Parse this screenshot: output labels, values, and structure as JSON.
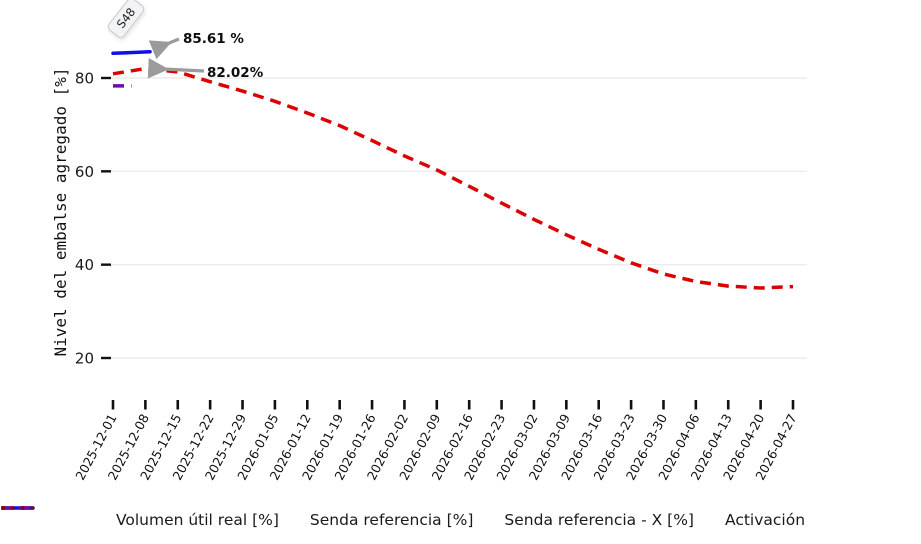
{
  "tooltip": {
    "label": "S48"
  },
  "annotations": [
    {
      "text": "85.61 %",
      "refers_to": "Volumen útil real [%]"
    },
    {
      "text": "82.02%",
      "refers_to": "Senda referencia [%]"
    }
  ],
  "chart_data": {
    "type": "line",
    "title": "",
    "xlabel": "",
    "ylabel": "Nivel del embalse agregado [%]",
    "grid": true,
    "legend_position": "bottom",
    "yaxis": {
      "ticks": [
        20,
        40,
        60,
        80
      ],
      "range": [
        13,
        92
      ]
    },
    "x_tick_labels": [
      "2025-12-01",
      "2025-12-08",
      "2025-12-15",
      "2025-12-22",
      "2025-12-29",
      "2026-01-05",
      "2026-01-12",
      "2026-01-19",
      "2026-01-26",
      "2026-02-02",
      "2026-02-09",
      "2026-02-16",
      "2026-02-23",
      "2026-03-02",
      "2026-03-09",
      "2026-03-16",
      "2026-03-23",
      "2026-03-30",
      "2026-04-06",
      "2026-04-13",
      "2026-04-20",
      "2026-04-27"
    ],
    "series": [
      {
        "name": "Volumen útil real [%]",
        "slug": "volumen-util-real",
        "color": "#0d0dee",
        "dash": "solid",
        "width": 3.5,
        "points": [
          {
            "x": "2025-12-01",
            "y": 85.3
          },
          {
            "x": "2025-12-09",
            "y": 85.61
          }
        ]
      },
      {
        "name": "Senda referencia [%]",
        "slug": "senda-referencia",
        "color": "#dd0000",
        "dash": "dash",
        "width": 3.5,
        "points": [
          {
            "x": "2025-12-01",
            "y": 80.9
          },
          {
            "x": "2025-12-08",
            "y": 82.02
          },
          {
            "x": "2025-12-15",
            "y": 81.3
          },
          {
            "x": "2025-12-22",
            "y": 79.2
          },
          {
            "x": "2025-12-29",
            "y": 77.2
          },
          {
            "x": "2026-01-05",
            "y": 75.0
          },
          {
            "x": "2026-01-12",
            "y": 72.5
          },
          {
            "x": "2026-01-19",
            "y": 69.8
          },
          {
            "x": "2026-01-26",
            "y": 66.6
          },
          {
            "x": "2026-02-02",
            "y": 63.3
          },
          {
            "x": "2026-02-09",
            "y": 60.3
          },
          {
            "x": "2026-02-16",
            "y": 56.8
          },
          {
            "x": "2026-02-23",
            "y": 53.2
          },
          {
            "x": "2026-03-02",
            "y": 49.7
          },
          {
            "x": "2026-03-09",
            "y": 46.4
          },
          {
            "x": "2026-03-16",
            "y": 43.3
          },
          {
            "x": "2026-03-23",
            "y": 40.4
          },
          {
            "x": "2026-03-30",
            "y": 38.0
          },
          {
            "x": "2026-04-06",
            "y": 36.4
          },
          {
            "x": "2026-04-13",
            "y": 35.4
          },
          {
            "x": "2026-04-20",
            "y": 35.0
          },
          {
            "x": "2026-04-27",
            "y": 35.3
          }
        ]
      },
      {
        "name": "Senda referencia - X [%]",
        "slug": "senda-referencia-x",
        "color": "#6a0dad",
        "dash": "dash",
        "width": 3.5,
        "points": [
          {
            "x": "2025-12-01",
            "y": 78.3
          },
          {
            "x": "2025-12-05",
            "y": 78.3
          }
        ]
      },
      {
        "name": "Activación",
        "slug": "activacion",
        "color": "#8b0000",
        "dash": "dot",
        "width": 3.5,
        "points": []
      }
    ]
  }
}
